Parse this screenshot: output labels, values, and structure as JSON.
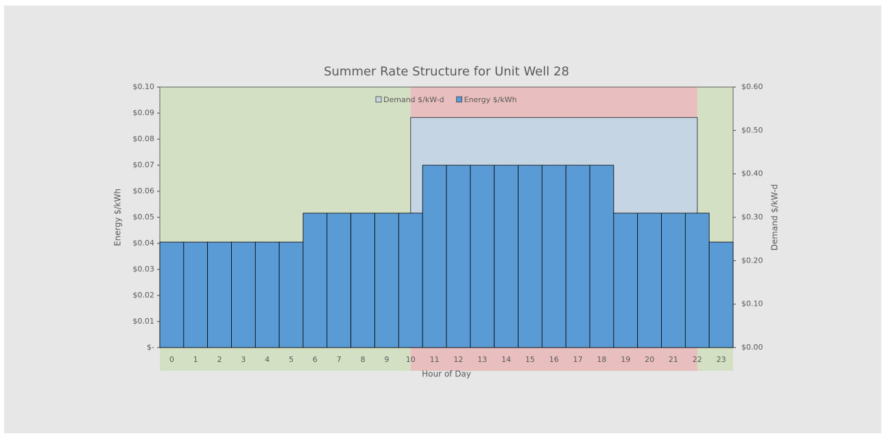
{
  "chart_data": {
    "type": "bar",
    "title": "Summer Rate Structure for Unit Well 28",
    "x_label": "Hour of Day",
    "y_label": "Energy $/kWh",
    "y2_label": "Demand $/kW-d",
    "categories": [
      "0",
      "1",
      "2",
      "3",
      "4",
      "5",
      "6",
      "7",
      "8",
      "9",
      "10",
      "11",
      "12",
      "13",
      "14",
      "15",
      "16",
      "17",
      "18",
      "19",
      "20",
      "21",
      "22",
      "23"
    ],
    "series": [
      {
        "name": "Demand $/kW-d",
        "color": "#c6d5e3",
        "axis": "y2",
        "type": "area",
        "values": [
          0,
          0,
          0,
          0,
          0,
          0,
          0,
          0,
          0,
          0,
          0.53,
          0.53,
          0.53,
          0.53,
          0.53,
          0.53,
          0.53,
          0.53,
          0.53,
          0.53,
          0.53,
          0.53,
          0.53,
          0
        ]
      },
      {
        "name": "Energy $/kWh",
        "color": "#5b9bd5",
        "axis": "y",
        "type": "bar",
        "values": [
          0.0405,
          0.0405,
          0.0405,
          0.0405,
          0.0405,
          0.0405,
          0.0516,
          0.0516,
          0.0516,
          0.0516,
          0.0516,
          0.07,
          0.07,
          0.07,
          0.07,
          0.07,
          0.07,
          0.07,
          0.07,
          0.0516,
          0.0516,
          0.0516,
          0.0516,
          0.0405
        ]
      }
    ],
    "ylim": [
      0,
      0.1
    ],
    "yticks": [
      {
        "value": 0,
        "label": "$-"
      },
      {
        "value": 0.01,
        "label": "$0.01"
      },
      {
        "value": 0.02,
        "label": "$0.02"
      },
      {
        "value": 0.03,
        "label": "$0.03"
      },
      {
        "value": 0.04,
        "label": "$0.04"
      },
      {
        "value": 0.05,
        "label": "$0.05"
      },
      {
        "value": 0.06,
        "label": "$0.06"
      },
      {
        "value": 0.07,
        "label": "$0.07"
      },
      {
        "value": 0.08,
        "label": "$0.08"
      },
      {
        "value": 0.09,
        "label": "$0.09"
      },
      {
        "value": 0.1,
        "label": "$0.10"
      }
    ],
    "y2lim": [
      0,
      0.6
    ],
    "y2ticks": [
      {
        "value": 0,
        "label": "$0.00"
      },
      {
        "value": 0.1,
        "label": "$0.10"
      },
      {
        "value": 0.2,
        "label": "$0.20"
      },
      {
        "value": 0.3,
        "label": "$0.30"
      },
      {
        "value": 0.4,
        "label": "$0.40"
      },
      {
        "value": 0.5,
        "label": "$0.50"
      },
      {
        "value": 0.6,
        "label": "$0.60"
      }
    ],
    "legend": "top"
  }
}
